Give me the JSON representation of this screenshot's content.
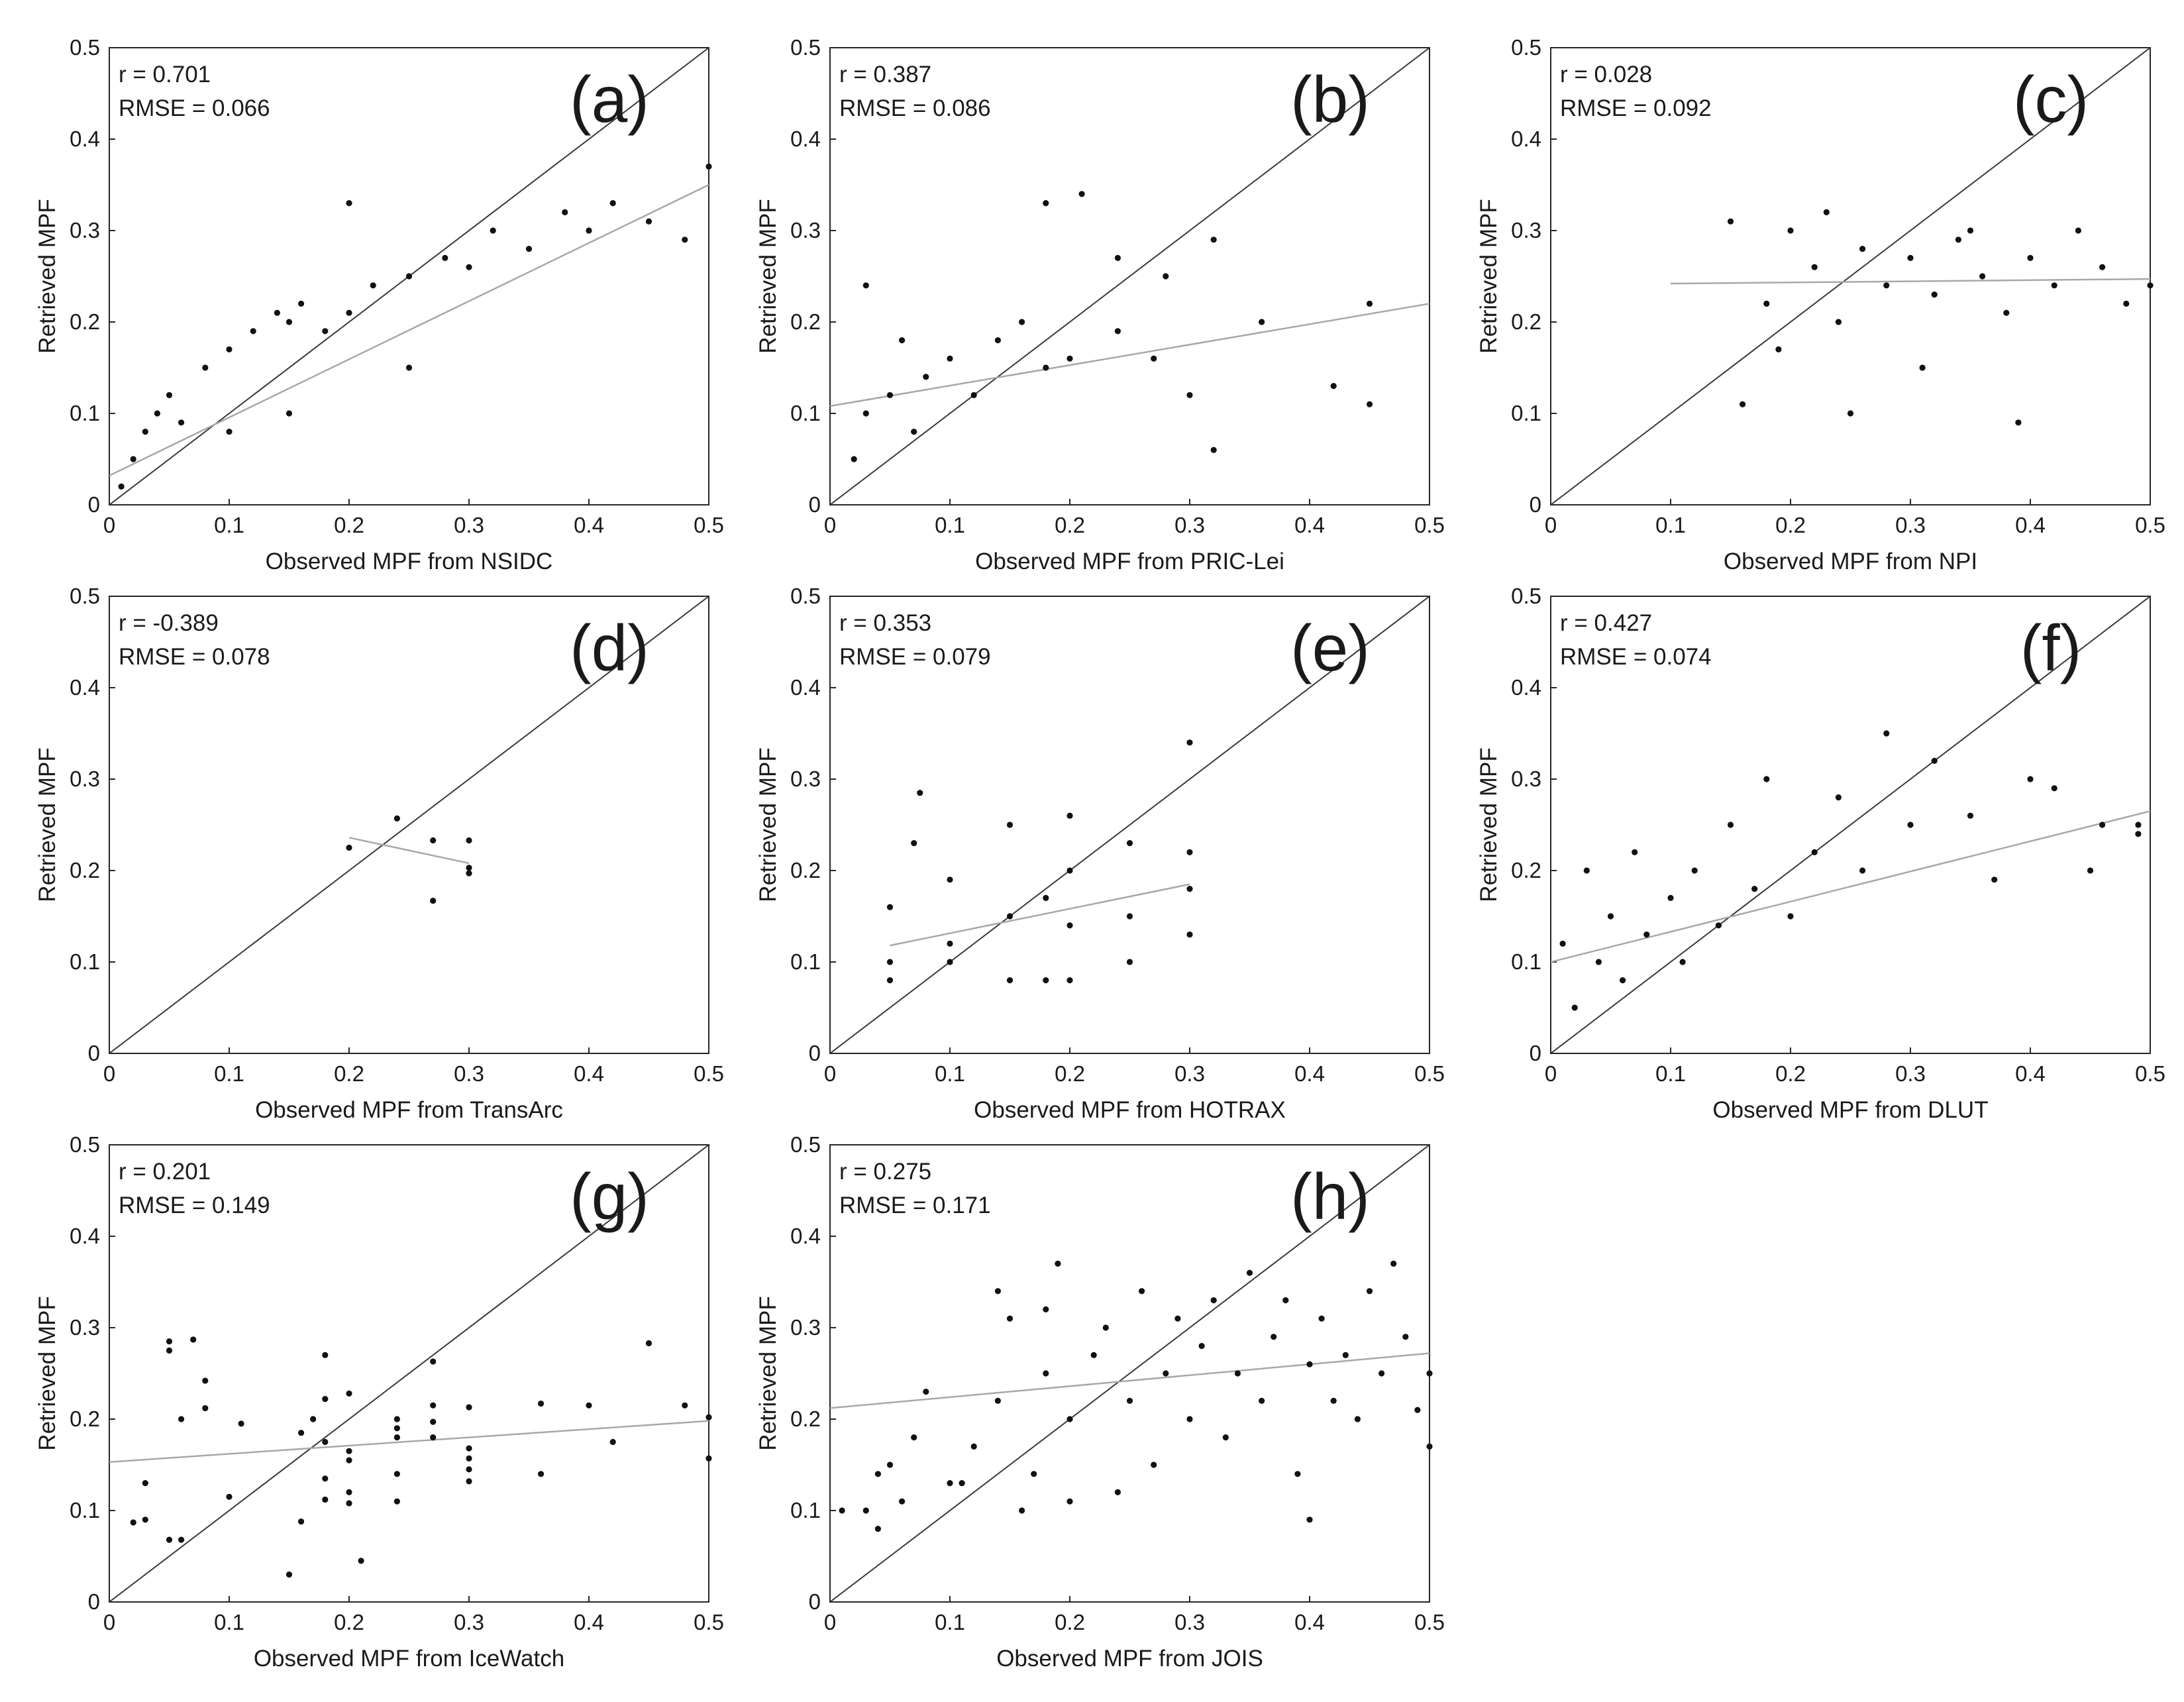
{
  "chart_data": [
    {
      "type": "scatter",
      "panel_label": "(a)",
      "r_text": "r = 0.701",
      "rmse_text": "RMSE = 0.066",
      "xlabel": "Observed MPF from NSIDC",
      "ylabel": "Retrieved MPF",
      "xlim": [
        0,
        0.5
      ],
      "ylim": [
        0,
        0.5
      ],
      "xticks": [
        "0",
        "0.1",
        "0.2",
        "0.3",
        "0.4",
        "0.5"
      ],
      "yticks": [
        "0",
        "0.1",
        "0.2",
        "0.3",
        "0.4",
        "0.5"
      ],
      "one_to_one_line": true,
      "fit_line": {
        "x": [
          0.0,
          0.5
        ],
        "y": [
          0.032,
          0.35
        ]
      },
      "points": [
        [
          0.01,
          0.02
        ],
        [
          0.02,
          0.05
        ],
        [
          0.03,
          0.08
        ],
        [
          0.04,
          0.1
        ],
        [
          0.05,
          0.12
        ],
        [
          0.06,
          0.09
        ],
        [
          0.08,
          0.15
        ],
        [
          0.1,
          0.17
        ],
        [
          0.12,
          0.19
        ],
        [
          0.14,
          0.21
        ],
        [
          0.15,
          0.2
        ],
        [
          0.16,
          0.22
        ],
        [
          0.18,
          0.19
        ],
        [
          0.2,
          0.21
        ],
        [
          0.22,
          0.24
        ],
        [
          0.25,
          0.25
        ],
        [
          0.28,
          0.27
        ],
        [
          0.3,
          0.26
        ],
        [
          0.32,
          0.3
        ],
        [
          0.35,
          0.28
        ],
        [
          0.38,
          0.32
        ],
        [
          0.4,
          0.3
        ],
        [
          0.42,
          0.33
        ],
        [
          0.45,
          0.31
        ],
        [
          0.48,
          0.29
        ],
        [
          0.5,
          0.37
        ],
        [
          0.15,
          0.1
        ],
        [
          0.2,
          0.33
        ],
        [
          0.25,
          0.15
        ],
        [
          0.1,
          0.08
        ]
      ]
    },
    {
      "type": "scatter",
      "panel_label": "(b)",
      "r_text": "r = 0.387",
      "rmse_text": "RMSE = 0.086",
      "xlabel": "Observed MPF from PRIC-Lei",
      "ylabel": "Retrieved MPF",
      "xlim": [
        0,
        0.5
      ],
      "ylim": [
        0,
        0.5
      ],
      "xticks": [
        "0",
        "0.1",
        "0.2",
        "0.3",
        "0.4",
        "0.5"
      ],
      "yticks": [
        "0",
        "0.1",
        "0.2",
        "0.3",
        "0.4",
        "0.5"
      ],
      "one_to_one_line": true,
      "fit_line": {
        "x": [
          0.0,
          0.5
        ],
        "y": [
          0.108,
          0.22
        ]
      },
      "points": [
        [
          0.02,
          0.05
        ],
        [
          0.03,
          0.1
        ],
        [
          0.03,
          0.24
        ],
        [
          0.05,
          0.12
        ],
        [
          0.06,
          0.18
        ],
        [
          0.07,
          0.08
        ],
        [
          0.08,
          0.14
        ],
        [
          0.1,
          0.16
        ],
        [
          0.12,
          0.12
        ],
        [
          0.14,
          0.18
        ],
        [
          0.16,
          0.2
        ],
        [
          0.18,
          0.15
        ],
        [
          0.18,
          0.33
        ],
        [
          0.2,
          0.16
        ],
        [
          0.21,
          0.34
        ],
        [
          0.24,
          0.19
        ],
        [
          0.24,
          0.27
        ],
        [
          0.27,
          0.16
        ],
        [
          0.28,
          0.25
        ],
        [
          0.3,
          0.12
        ],
        [
          0.32,
          0.06
        ],
        [
          0.32,
          0.29
        ],
        [
          0.36,
          0.2
        ],
        [
          0.42,
          0.13
        ],
        [
          0.45,
          0.22
        ],
        [
          0.45,
          0.11
        ]
      ]
    },
    {
      "type": "scatter",
      "panel_label": "(c)",
      "r_text": "r = 0.028",
      "rmse_text": "RMSE = 0.092",
      "xlabel": "Observed MPF from NPI",
      "ylabel": "Retrieved MPF",
      "xlim": [
        0,
        0.5
      ],
      "ylim": [
        0,
        0.5
      ],
      "xticks": [
        "0",
        "0.1",
        "0.2",
        "0.3",
        "0.4",
        "0.5"
      ],
      "yticks": [
        "0",
        "0.1",
        "0.2",
        "0.3",
        "0.4",
        "0.5"
      ],
      "one_to_one_line": true,
      "fit_line": {
        "x": [
          0.1,
          0.5
        ],
        "y": [
          0.242,
          0.247
        ]
      },
      "points": [
        [
          0.15,
          0.31
        ],
        [
          0.16,
          0.11
        ],
        [
          0.18,
          0.22
        ],
        [
          0.2,
          0.3
        ],
        [
          0.22,
          0.26
        ],
        [
          0.24,
          0.2
        ],
        [
          0.25,
          0.1
        ],
        [
          0.26,
          0.28
        ],
        [
          0.28,
          0.24
        ],
        [
          0.3,
          0.27
        ],
        [
          0.32,
          0.23
        ],
        [
          0.34,
          0.29
        ],
        [
          0.36,
          0.25
        ],
        [
          0.38,
          0.21
        ],
        [
          0.39,
          0.09
        ],
        [
          0.4,
          0.27
        ],
        [
          0.42,
          0.24
        ],
        [
          0.44,
          0.3
        ],
        [
          0.46,
          0.26
        ],
        [
          0.48,
          0.22
        ],
        [
          0.5,
          0.24
        ],
        [
          0.23,
          0.32
        ],
        [
          0.31,
          0.15
        ],
        [
          0.35,
          0.3
        ],
        [
          0.19,
          0.17
        ]
      ]
    },
    {
      "type": "scatter",
      "panel_label": "(d)",
      "r_text": "r = -0.389",
      "rmse_text": "RMSE = 0.078",
      "xlabel": "Observed MPF from TransArc",
      "ylabel": "Retrieved MPF",
      "xlim": [
        0,
        0.5
      ],
      "ylim": [
        0,
        0.5
      ],
      "xticks": [
        "0",
        "0.1",
        "0.2",
        "0.3",
        "0.4",
        "0.5"
      ],
      "yticks": [
        "0",
        "0.1",
        "0.2",
        "0.3",
        "0.4",
        "0.5"
      ],
      "one_to_one_line": true,
      "fit_line": {
        "x": [
          0.2,
          0.3
        ],
        "y": [
          0.236,
          0.208
        ]
      },
      "points": [
        [
          0.2,
          0.225
        ],
        [
          0.24,
          0.257
        ],
        [
          0.27,
          0.233
        ],
        [
          0.27,
          0.167
        ],
        [
          0.3,
          0.233
        ],
        [
          0.3,
          0.203
        ],
        [
          0.3,
          0.197
        ]
      ]
    },
    {
      "type": "scatter",
      "panel_label": "(e)",
      "r_text": "r = 0.353",
      "rmse_text": "RMSE = 0.079",
      "xlabel": "Observed MPF from HOTRAX",
      "ylabel": "Retrieved MPF",
      "xlim": [
        0,
        0.5
      ],
      "ylim": [
        0,
        0.5
      ],
      "xticks": [
        "0",
        "0.1",
        "0.2",
        "0.3",
        "0.4",
        "0.5"
      ],
      "yticks": [
        "0",
        "0.1",
        "0.2",
        "0.3",
        "0.4",
        "0.5"
      ],
      "one_to_one_line": true,
      "fit_line": {
        "x": [
          0.05,
          0.3
        ],
        "y": [
          0.118,
          0.185
        ]
      },
      "points": [
        [
          0.05,
          0.16
        ],
        [
          0.05,
          0.1
        ],
        [
          0.05,
          0.08
        ],
        [
          0.07,
          0.23
        ],
        [
          0.075,
          0.285
        ],
        [
          0.1,
          0.19
        ],
        [
          0.1,
          0.12
        ],
        [
          0.1,
          0.1
        ],
        [
          0.15,
          0.25
        ],
        [
          0.15,
          0.15
        ],
        [
          0.15,
          0.08
        ],
        [
          0.18,
          0.17
        ],
        [
          0.18,
          0.08
        ],
        [
          0.2,
          0.26
        ],
        [
          0.2,
          0.2
        ],
        [
          0.2,
          0.14
        ],
        [
          0.2,
          0.08
        ],
        [
          0.25,
          0.23
        ],
        [
          0.25,
          0.15
        ],
        [
          0.25,
          0.1
        ],
        [
          0.3,
          0.34
        ],
        [
          0.3,
          0.22
        ],
        [
          0.3,
          0.18
        ],
        [
          0.3,
          0.13
        ]
      ]
    },
    {
      "type": "scatter",
      "panel_label": "(f)",
      "r_text": "r = 0.427",
      "rmse_text": "RMSE = 0.074",
      "xlabel": "Observed MPF from DLUT",
      "ylabel": "Retrieved MPF",
      "xlim": [
        0,
        0.5
      ],
      "ylim": [
        0,
        0.5
      ],
      "xticks": [
        "0",
        "0.1",
        "0.2",
        "0.3",
        "0.4",
        "0.5"
      ],
      "yticks": [
        "0",
        "0.1",
        "0.2",
        "0.3",
        "0.4",
        "0.5"
      ],
      "one_to_one_line": true,
      "fit_line": {
        "x": [
          0.0,
          0.5
        ],
        "y": [
          0.1,
          0.265
        ]
      },
      "points": [
        [
          0.01,
          0.12
        ],
        [
          0.02,
          0.05
        ],
        [
          0.03,
          0.2
        ],
        [
          0.04,
          0.1
        ],
        [
          0.05,
          0.15
        ],
        [
          0.06,
          0.08
        ],
        [
          0.07,
          0.22
        ],
        [
          0.08,
          0.13
        ],
        [
          0.1,
          0.17
        ],
        [
          0.11,
          0.1
        ],
        [
          0.12,
          0.2
        ],
        [
          0.14,
          0.14
        ],
        [
          0.15,
          0.25
        ],
        [
          0.17,
          0.18
        ],
        [
          0.18,
          0.3
        ],
        [
          0.2,
          0.15
        ],
        [
          0.22,
          0.22
        ],
        [
          0.24,
          0.28
        ],
        [
          0.26,
          0.2
        ],
        [
          0.28,
          0.35
        ],
        [
          0.3,
          0.25
        ],
        [
          0.32,
          0.32
        ],
        [
          0.35,
          0.26
        ],
        [
          0.37,
          0.19
        ],
        [
          0.4,
          0.3
        ],
        [
          0.42,
          0.29
        ],
        [
          0.45,
          0.2
        ],
        [
          0.46,
          0.25
        ],
        [
          0.49,
          0.25
        ],
        [
          0.49,
          0.24
        ]
      ]
    },
    {
      "type": "scatter",
      "panel_label": "(g)",
      "r_text": "r = 0.201",
      "rmse_text": "RMSE = 0.149",
      "xlabel": "Observed MPF from IceWatch",
      "ylabel": "Retrieved MPF",
      "xlim": [
        0,
        0.5
      ],
      "ylim": [
        0,
        0.5
      ],
      "xticks": [
        "0",
        "0.1",
        "0.2",
        "0.3",
        "0.4",
        "0.5"
      ],
      "yticks": [
        "0",
        "0.1",
        "0.2",
        "0.3",
        "0.4",
        "0.5"
      ],
      "one_to_one_line": true,
      "fit_line": {
        "x": [
          0.0,
          0.5
        ],
        "y": [
          0.153,
          0.198
        ]
      },
      "points": [
        [
          0.02,
          0.087
        ],
        [
          0.03,
          0.09
        ],
        [
          0.03,
          0.13
        ],
        [
          0.05,
          0.285
        ],
        [
          0.05,
          0.275
        ],
        [
          0.05,
          0.068
        ],
        [
          0.06,
          0.068
        ],
        [
          0.06,
          0.2
        ],
        [
          0.07,
          0.287
        ],
        [
          0.08,
          0.242
        ],
        [
          0.08,
          0.212
        ],
        [
          0.1,
          0.115
        ],
        [
          0.11,
          0.195
        ],
        [
          0.15,
          0.03
        ],
        [
          0.16,
          0.088
        ],
        [
          0.16,
          0.185
        ],
        [
          0.17,
          0.2
        ],
        [
          0.18,
          0.27
        ],
        [
          0.18,
          0.222
        ],
        [
          0.18,
          0.175
        ],
        [
          0.18,
          0.135
        ],
        [
          0.18,
          0.112
        ],
        [
          0.2,
          0.228
        ],
        [
          0.2,
          0.165
        ],
        [
          0.2,
          0.155
        ],
        [
          0.2,
          0.12
        ],
        [
          0.2,
          0.108
        ],
        [
          0.21,
          0.045
        ],
        [
          0.24,
          0.2
        ],
        [
          0.24,
          0.19
        ],
        [
          0.24,
          0.18
        ],
        [
          0.24,
          0.14
        ],
        [
          0.24,
          0.11
        ],
        [
          0.27,
          0.263
        ],
        [
          0.27,
          0.215
        ],
        [
          0.27,
          0.197
        ],
        [
          0.27,
          0.18
        ],
        [
          0.3,
          0.213
        ],
        [
          0.3,
          0.168
        ],
        [
          0.3,
          0.157
        ],
        [
          0.3,
          0.145
        ],
        [
          0.3,
          0.132
        ],
        [
          0.36,
          0.217
        ],
        [
          0.36,
          0.14
        ],
        [
          0.4,
          0.215
        ],
        [
          0.42,
          0.175
        ],
        [
          0.45,
          0.283
        ],
        [
          0.48,
          0.215
        ],
        [
          0.5,
          0.202
        ],
        [
          0.5,
          0.157
        ]
      ]
    },
    {
      "type": "scatter",
      "panel_label": "(h)",
      "r_text": "r = 0.275",
      "rmse_text": "RMSE = 0.171",
      "xlabel": "Observed MPF from JOIS",
      "ylabel": "Retrieved MPF",
      "xlim": [
        0,
        0.5
      ],
      "ylim": [
        0,
        0.5
      ],
      "xticks": [
        "0",
        "0.1",
        "0.2",
        "0.3",
        "0.4",
        "0.5"
      ],
      "yticks": [
        "0",
        "0.1",
        "0.2",
        "0.3",
        "0.4",
        "0.5"
      ],
      "one_to_one_line": true,
      "fit_line": {
        "x": [
          0.0,
          0.5
        ],
        "y": [
          0.212,
          0.272
        ]
      },
      "points": [
        [
          0.01,
          0.1
        ],
        [
          0.03,
          0.1
        ],
        [
          0.04,
          0.08
        ],
        [
          0.04,
          0.14
        ],
        [
          0.05,
          0.15
        ],
        [
          0.06,
          0.11
        ],
        [
          0.07,
          0.18
        ],
        [
          0.08,
          0.23
        ],
        [
          0.1,
          0.13
        ],
        [
          0.11,
          0.13
        ],
        [
          0.12,
          0.17
        ],
        [
          0.14,
          0.34
        ],
        [
          0.14,
          0.22
        ],
        [
          0.15,
          0.31
        ],
        [
          0.16,
          0.1
        ],
        [
          0.17,
          0.14
        ],
        [
          0.18,
          0.32
        ],
        [
          0.18,
          0.25
        ],
        [
          0.19,
          0.37
        ],
        [
          0.2,
          0.11
        ],
        [
          0.2,
          0.2
        ],
        [
          0.22,
          0.27
        ],
        [
          0.23,
          0.3
        ],
        [
          0.24,
          0.12
        ],
        [
          0.25,
          0.22
        ],
        [
          0.26,
          0.34
        ],
        [
          0.27,
          0.15
        ],
        [
          0.28,
          0.25
        ],
        [
          0.29,
          0.31
        ],
        [
          0.3,
          0.2
        ],
        [
          0.31,
          0.28
        ],
        [
          0.32,
          0.33
        ],
        [
          0.33,
          0.18
        ],
        [
          0.34,
          0.25
        ],
        [
          0.35,
          0.36
        ],
        [
          0.36,
          0.22
        ],
        [
          0.37,
          0.29
        ],
        [
          0.38,
          0.33
        ],
        [
          0.39,
          0.14
        ],
        [
          0.4,
          0.26
        ],
        [
          0.41,
          0.31
        ],
        [
          0.42,
          0.22
        ],
        [
          0.43,
          0.27
        ],
        [
          0.44,
          0.2
        ],
        [
          0.45,
          0.34
        ],
        [
          0.46,
          0.25
        ],
        [
          0.47,
          0.37
        ],
        [
          0.48,
          0.29
        ],
        [
          0.49,
          0.21
        ],
        [
          0.5,
          0.17
        ],
        [
          0.5,
          0.25
        ],
        [
          0.4,
          0.09
        ]
      ]
    }
  ]
}
